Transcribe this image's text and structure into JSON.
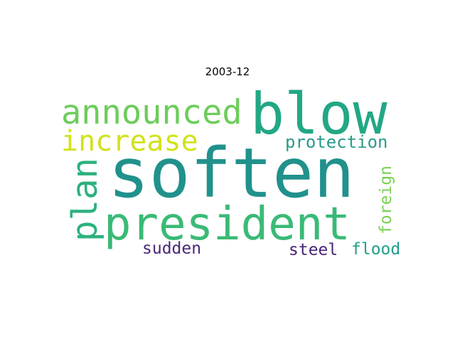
{
  "title": "2003-12",
  "words": [
    {
      "text": "soften",
      "color": "#21918c"
    },
    {
      "text": "blow",
      "color": "#22a785"
    },
    {
      "text": "president",
      "color": "#3aba76"
    },
    {
      "text": "announced",
      "color": "#6ccd5a"
    },
    {
      "text": "increase",
      "color": "#d2e21b"
    },
    {
      "text": "plan",
      "color": "#2cb17e"
    },
    {
      "text": "protection",
      "color": "#2a9a8a"
    },
    {
      "text": "foreign",
      "color": "#7ad151"
    },
    {
      "text": "sudden",
      "color": "#482878"
    },
    {
      "text": "steel",
      "color": "#482475"
    },
    {
      "text": "flood",
      "color": "#1f9e89"
    }
  ]
}
